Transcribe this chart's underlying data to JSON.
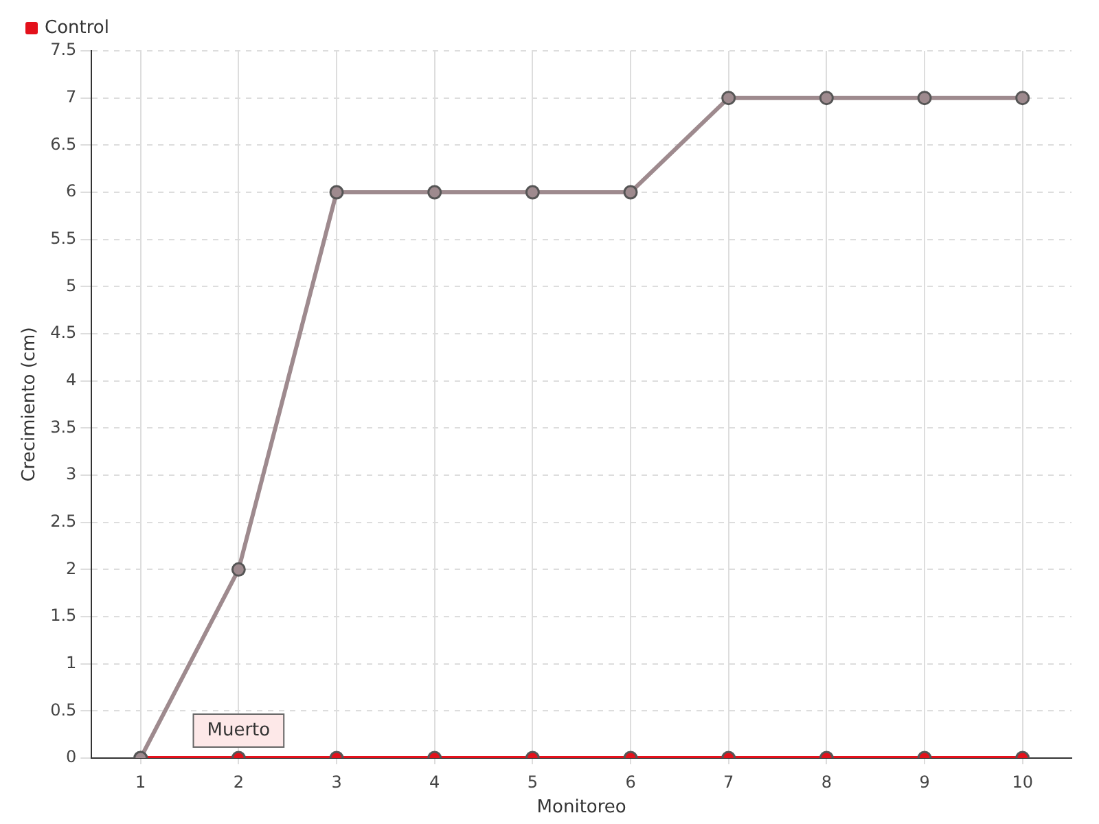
{
  "chart_data": {
    "type": "line",
    "xlabel": "Monitoreo",
    "ylabel": "Crecimiento (cm)",
    "categories": [
      "1",
      "2",
      "3",
      "4",
      "5",
      "6",
      "7",
      "8",
      "9",
      "10"
    ],
    "series": [
      {
        "color": "#9e8a8e",
        "values": [
          0,
          2,
          6,
          6,
          6,
          6,
          7,
          7,
          7,
          7
        ]
      },
      {
        "name": "Control",
        "color": "#e3111b",
        "values": [
          0,
          0,
          0,
          0,
          0,
          0,
          0,
          0,
          0,
          0
        ]
      }
    ],
    "ylim": [
      0,
      7.5
    ],
    "yticks": [
      0,
      0.5,
      1,
      1.5,
      2,
      2.5,
      3,
      3.5,
      4,
      4.5,
      5,
      5.5,
      6,
      6.5,
      7,
      7.5
    ],
    "grid": true,
    "legend": "top left",
    "marker": "circle",
    "line_style": "solid",
    "annotations": [
      {
        "text": "Muerto",
        "x": "2",
        "y": 0
      }
    ]
  }
}
